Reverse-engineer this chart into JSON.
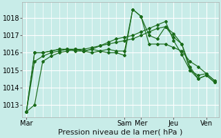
{
  "bg_color": "#c8ece8",
  "grid_color": "#ffffff",
  "line_color": "#1a6b1a",
  "xlabel": "Pression niveau de la mer( hPa )",
  "xlabel_fontsize": 8,
  "yticks": [
    1013,
    1014,
    1015,
    1016,
    1017,
    1018
  ],
  "ylim": [
    1012.3,
    1018.9
  ],
  "xtick_labels": [
    "Mar",
    "Sam",
    "Mer",
    "Jeu",
    "Ven"
  ],
  "xtick_positions": [
    0,
    12,
    14,
    18,
    22
  ],
  "xlim": [
    -0.5,
    23.5
  ],
  "series": [
    [
      1012.6,
      1013.0,
      1015.5,
      1015.8,
      1016.0,
      1016.1,
      1016.2,
      1016.1,
      1016.2,
      1016.1,
      1016.0,
      1016.0,
      1015.85,
      1018.5,
      1018.1,
      1017.0,
      1016.8,
      1017.5,
      1017.1,
      1016.5,
      1015.0,
      1014.7,
      1014.8,
      1014.4
    ],
    [
      1012.6,
      1015.5,
      1015.8,
      1016.0,
      1016.1,
      1016.2,
      1016.2,
      1016.1,
      1016.0,
      1016.1,
      1016.2,
      1016.1,
      1016.1,
      1018.5,
      1018.1,
      1016.5,
      1016.5,
      1016.5,
      1016.3,
      1016.1,
      1015.5,
      1015.2,
      1014.8,
      1014.4
    ],
    [
      1012.6,
      1016.0,
      1016.0,
      1016.1,
      1016.2,
      1016.2,
      1016.1,
      1016.1,
      1016.2,
      1016.4,
      1016.6,
      1016.8,
      1016.9,
      1017.0,
      1017.2,
      1017.4,
      1017.6,
      1017.8,
      1016.7,
      1015.9,
      1015.0,
      1014.5,
      1014.7,
      1014.3
    ],
    [
      1012.6,
      1016.0,
      1016.0,
      1016.1,
      1016.2,
      1016.2,
      1016.2,
      1016.2,
      1016.3,
      1016.4,
      1016.5,
      1016.6,
      1016.7,
      1016.8,
      1017.0,
      1017.2,
      1017.4,
      1017.5,
      1016.9,
      1016.5,
      1015.2,
      1014.5,
      1014.7,
      1014.3
    ]
  ]
}
